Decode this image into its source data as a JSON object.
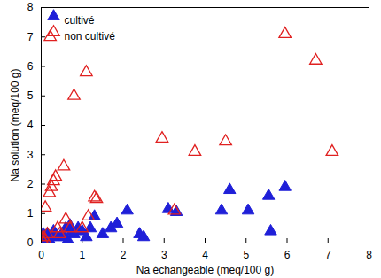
{
  "chart_data": {
    "type": "scatter",
    "x_label": "Na échangeable (meq/100 g)",
    "y_label": "Na solution (meq/100 g)",
    "xlim": [
      0,
      8
    ],
    "ylim": [
      0,
      8
    ],
    "xticks": [
      0,
      1,
      2,
      3,
      4,
      5,
      6,
      7,
      8
    ],
    "yticks": [
      0,
      1,
      2,
      3,
      4,
      5,
      6,
      7,
      8
    ],
    "legend": "top-left",
    "grid": false,
    "series": [
      {
        "name": "cultivé",
        "color": "#1f1fd8",
        "marker": "filled-triangle",
        "x": [
          0.0,
          0.05,
          0.05,
          0.1,
          0.15,
          0.2,
          0.25,
          0.3,
          0.35,
          0.4,
          0.5,
          0.55,
          0.6,
          0.65,
          0.7,
          0.75,
          0.8,
          0.9,
          1.0,
          1.1,
          1.2,
          1.3,
          1.5,
          1.7,
          1.85,
          2.1,
          2.4,
          2.5,
          3.1,
          3.3,
          4.4,
          4.6,
          5.05,
          5.55,
          5.6,
          5.95
        ],
        "y": [
          0.05,
          0.1,
          0.3,
          0.2,
          0.3,
          0.1,
          0.2,
          0.4,
          0.3,
          0.2,
          0.3,
          0.2,
          0.5,
          0.1,
          0.6,
          0.4,
          0.3,
          0.5,
          0.4,
          0.2,
          0.5,
          0.9,
          0.3,
          0.5,
          0.65,
          1.1,
          0.3,
          0.2,
          1.15,
          1.05,
          1.1,
          1.8,
          1.1,
          1.6,
          0.4,
          1.9
        ]
      },
      {
        "name": "non cultivé",
        "color": "#e02020",
        "marker": "open-triangle",
        "x": [
          0.02,
          0.05,
          0.05,
          0.1,
          0.1,
          0.15,
          0.2,
          0.22,
          0.25,
          0.3,
          0.35,
          0.4,
          0.45,
          0.55,
          0.6,
          0.7,
          0.8,
          1.0,
          1.1,
          1.15,
          1.3,
          1.35,
          2.95,
          3.25,
          3.75,
          4.5,
          5.95,
          6.7,
          7.1
        ],
        "y": [
          0.1,
          0.2,
          0.05,
          1.2,
          0.1,
          0.3,
          1.7,
          7.0,
          1.9,
          2.1,
          2.25,
          0.5,
          0.3,
          2.6,
          0.8,
          0.5,
          5.0,
          0.5,
          5.8,
          0.9,
          1.55,
          1.5,
          3.55,
          1.1,
          3.1,
          3.45,
          7.1,
          6.2,
          3.1
        ]
      }
    ]
  }
}
